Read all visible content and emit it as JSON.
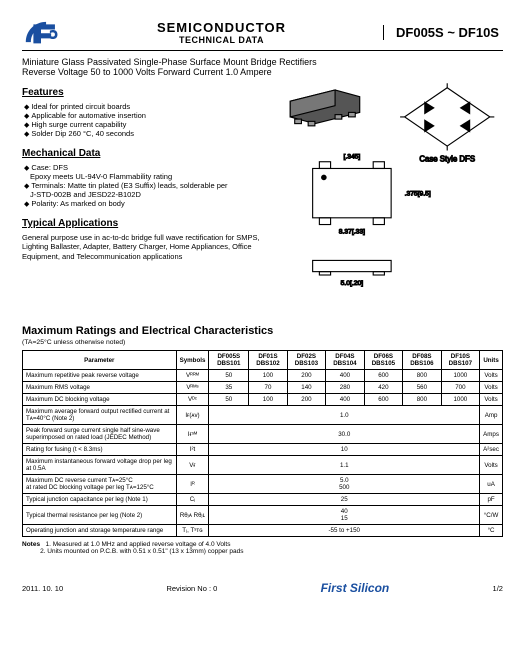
{
  "header": {
    "line1": "SEMICONDUCTOR",
    "line2": "TECHNICAL DATA",
    "partRange": "DF005S ~ DF10S"
  },
  "title": "Miniature Glass Passivated Single-Phase Surface Mount Bridge Rectifiers",
  "subtitle": "Reverse Voltage 50 to 1000 Volts    Forward Current 1.0 Ampere",
  "features": {
    "heading": "Features",
    "items": [
      "Ideal for printed circuit boards",
      "Applicable for automative insertion",
      "High surge current capability",
      "Solder Dip 260 °C, 40 seconds"
    ]
  },
  "mechanical": {
    "heading": "Mechanical Data",
    "items": [
      "Case: DFS",
      "Terminals: Matte tin plated (E3 Suffix) leads, solderable per",
      "Polarity: As marked on body"
    ],
    "subItems": {
      "0": [
        "Epoxy meets UL-94V-0 Flammability rating"
      ],
      "1": [
        "J-STD-002B and JESD22-B102D"
      ]
    }
  },
  "applications": {
    "heading": "Typical Applications",
    "text": "General purpose use in ac-to-dc bridge full wave rectification for SMPS, Lighting Ballaster, Adapter, Battery Charger, Home Appliances, Office Equipment, and Telecommunication applications"
  },
  "diagramLabels": {
    "caseStyle": "Case Style DFS",
    "dim1": "[.345]",
    "dim2": ".375[9.5]",
    "dim3": "8.37[.33]",
    "dim4": "5.0[.20]"
  },
  "ratings": {
    "heading": "Maximum Ratings and Electrical Characteristics",
    "condition": "(TA=25°C unless otherwise noted)",
    "columns": [
      "Parameter",
      "Symbols",
      "DF005S DBS101",
      "DF01S DBS102",
      "DF02S DBS103",
      "DF04S DBS104",
      "DF06S DBS105",
      "DF08S DBS106",
      "DF10S DBS107",
      "Units"
    ],
    "rows": [
      {
        "p": "Maximum repetitive peak reverse voltage",
        "s": "Vᴿᴿᴹ",
        "v": [
          "50",
          "100",
          "200",
          "400",
          "600",
          "800",
          "1000"
        ],
        "u": "Volts"
      },
      {
        "p": "Maximum RMS voltage",
        "s": "Vᴿᴹˢ",
        "v": [
          "35",
          "70",
          "140",
          "280",
          "420",
          "560",
          "700"
        ],
        "u": "Volts"
      },
      {
        "p": "Maximum DC blocking voltage",
        "s": "Vᴰᶜ",
        "v": [
          "50",
          "100",
          "200",
          "400",
          "600",
          "800",
          "1000"
        ],
        "u": "Volts"
      },
      {
        "p": "Maximum average forward output rectified current at Tᴀ=40°C (Note 2)",
        "s": "Iғ(ᴀᴠ)",
        "span": "1.0",
        "u": "Amp"
      },
      {
        "p": "Peak forward surge current single half sine-wave superimposed on rated load (JEDEC Method)",
        "s": "Iғˢᴹ",
        "span": "30.0",
        "u": "Amps"
      },
      {
        "p": "Rating for fusing (t < 8.3ms)",
        "s": "I²t",
        "span": "10",
        "u": "A²sec"
      },
      {
        "p": "Maximum instantaneous forward voltage drop per leg at 0.5A",
        "s": "Vғ",
        "span": "1.1",
        "u": "Volts"
      },
      {
        "p": "Maximum DC reverse current       Tᴀ=25°C\nat rated DC blocking voltage per leg   Tᴀ=125°C",
        "s": "Iᴿ",
        "span": "5.0\n500",
        "u": "uA"
      },
      {
        "p": "Typical junction capacitance per leg (Note 1)",
        "s": "Cⱼ",
        "span": "25",
        "u": "pF"
      },
      {
        "p": "Typical thermal resistance per leg (Note 2)",
        "s": "Rθⱼᴀ\nRθⱼʟ",
        "span": "40\n15",
        "u": "°C/W"
      },
      {
        "p": "Operating junction and storage temperature range",
        "s": "Tⱼ, Tˢᴛɢ",
        "span": "-55 to +150",
        "u": "°C"
      }
    ]
  },
  "notes": {
    "label": "Notes",
    "items": [
      "1. Measured at 1.0 MHz and applied reverse voltage of 4.0 Volts",
      "2. Units mounted on P.C.B. with 0.51 x 0.51\" (13 x 13mm) copper pads"
    ]
  },
  "footer": {
    "date": "2011. 10. 10",
    "rev": "Revision No : 0",
    "brand": "First Silicon",
    "page": "1/2"
  },
  "colors": {
    "brand": "#1a4fa0"
  }
}
